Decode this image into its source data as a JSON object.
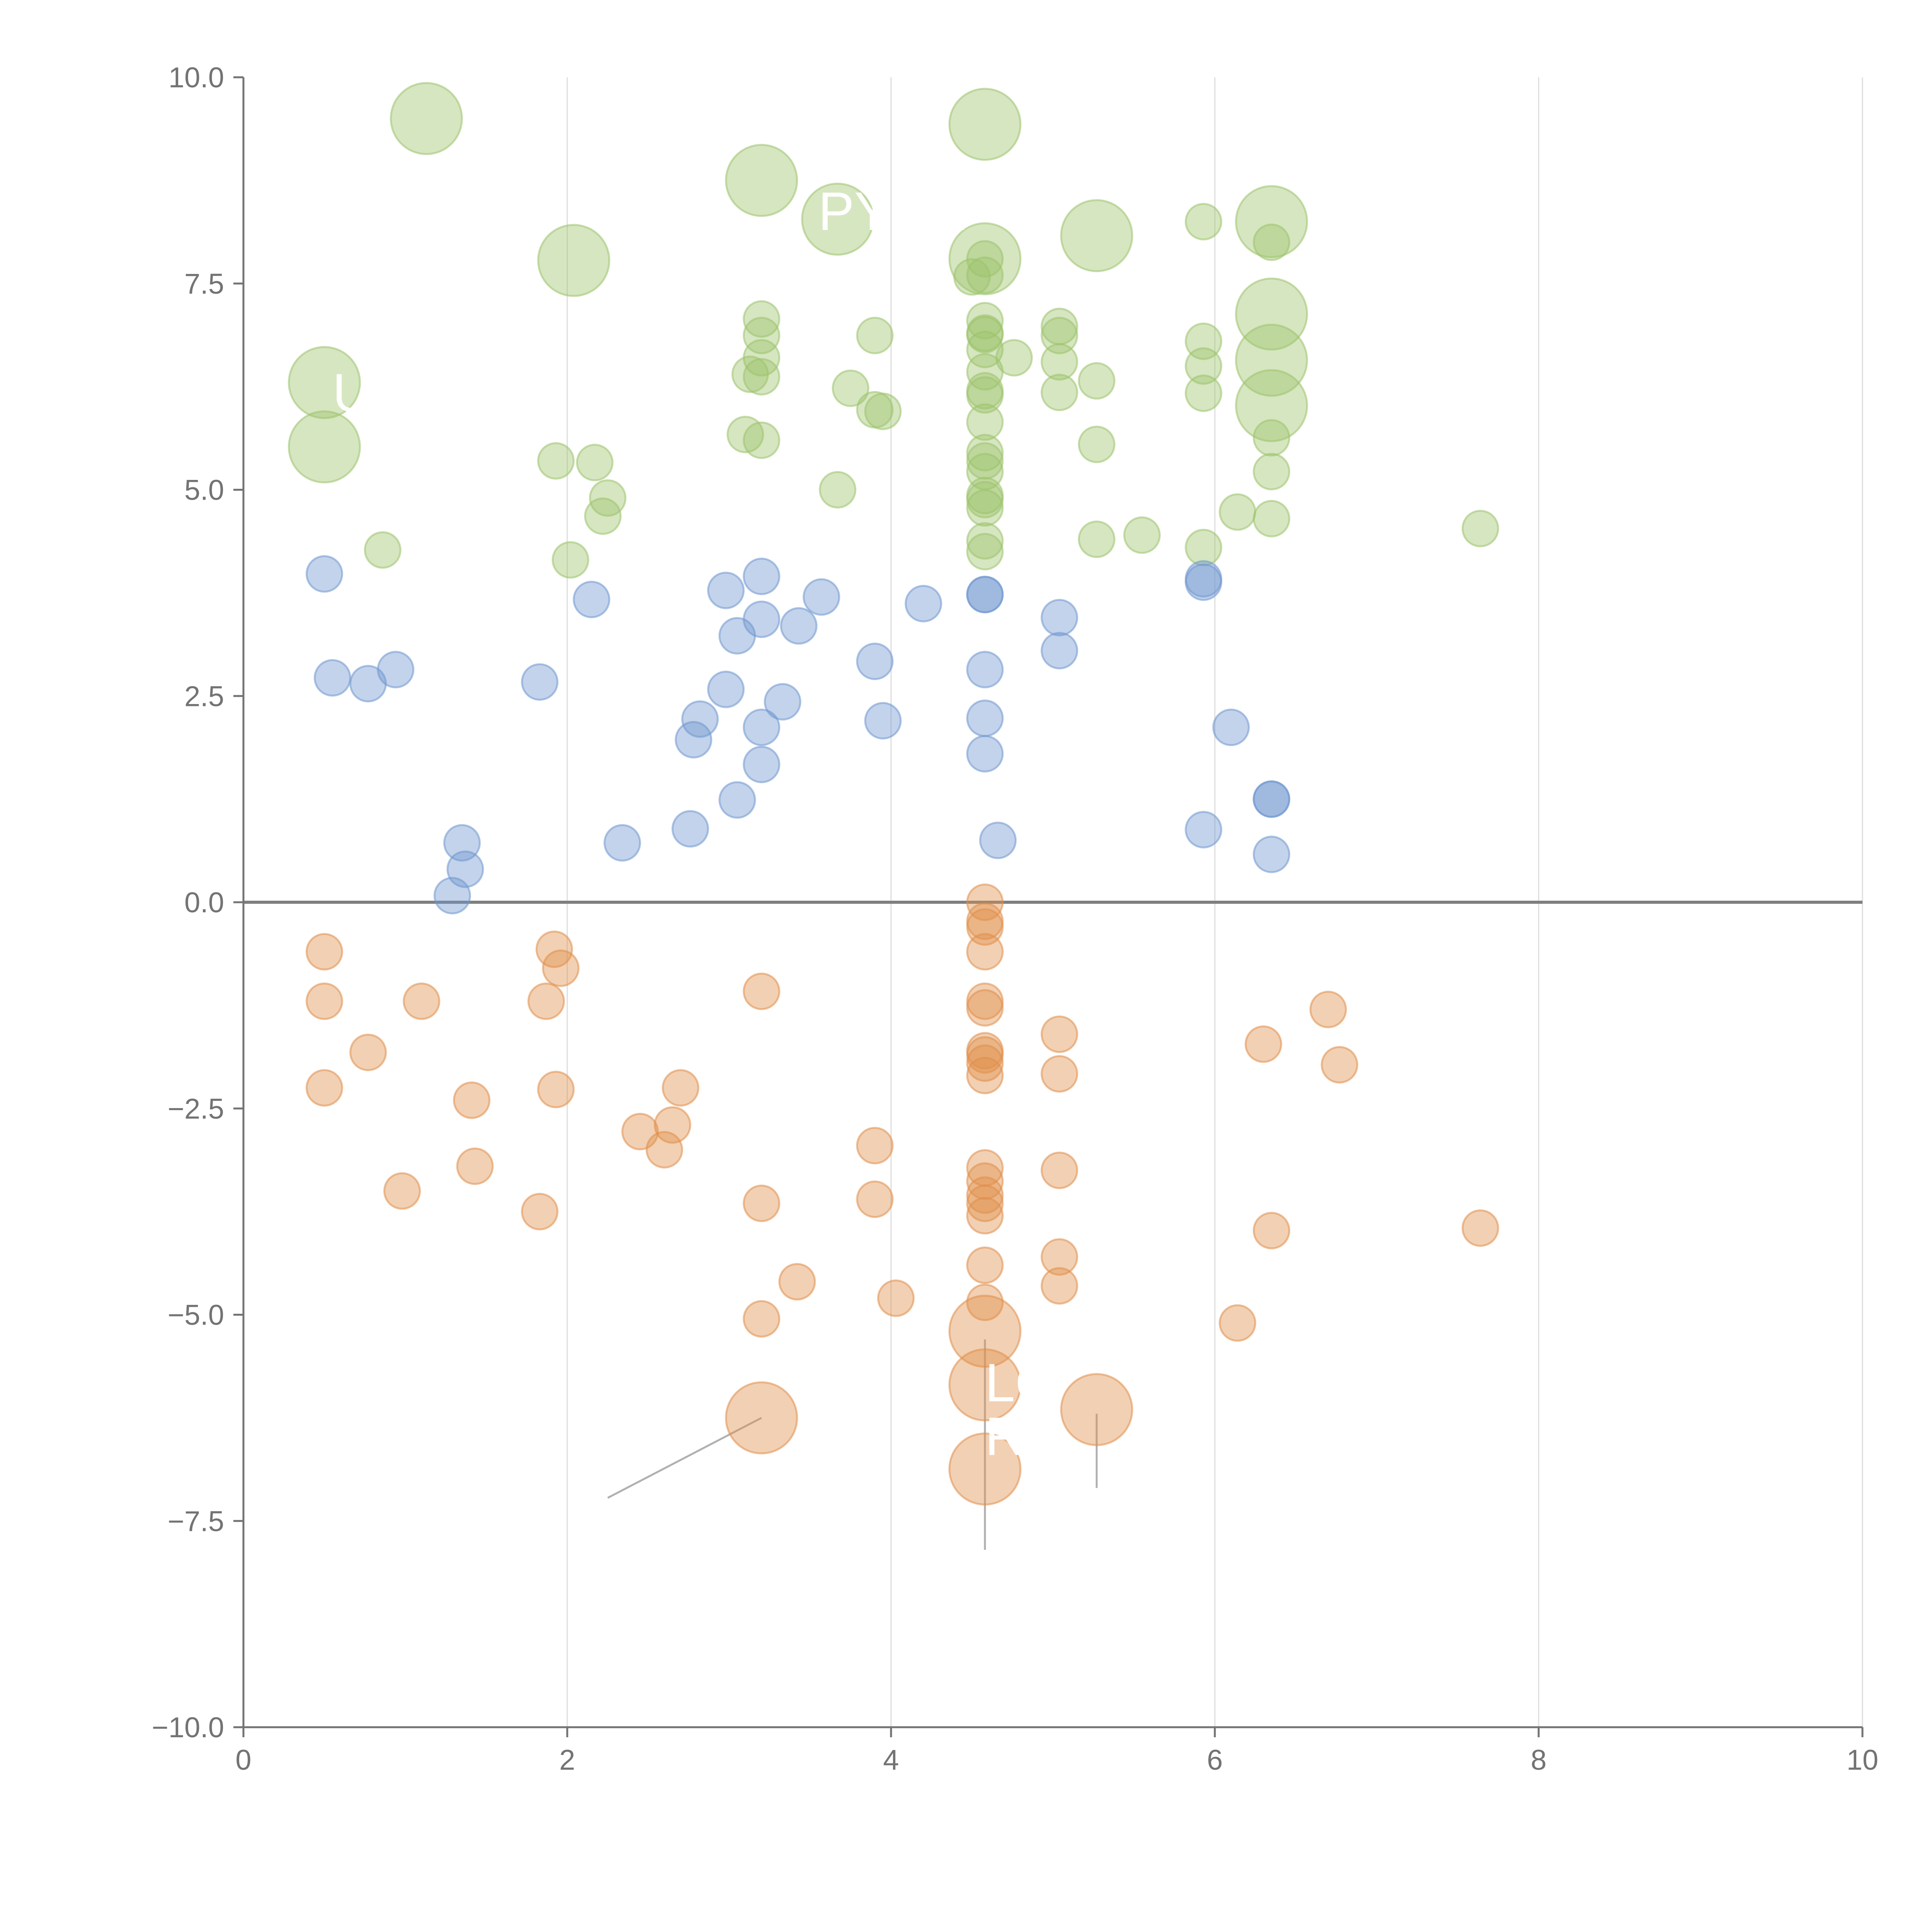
{
  "chart_data": {
    "type": "scatter",
    "title": "",
    "xlabel": "",
    "ylabel": "",
    "xlim": [
      0,
      10
    ],
    "ylim": [
      -10,
      10
    ],
    "x_ticks": [
      0,
      2,
      4,
      6,
      8,
      10
    ],
    "x_tick_labels": [
      "0",
      "2",
      "4",
      "6",
      "8",
      "10"
    ],
    "y_ticks": [
      10,
      7.5,
      5,
      2.5,
      0,
      -2.5,
      -5,
      -7.5,
      -10
    ],
    "y_tick_labels": [
      "10.0",
      "7.5",
      "5.0",
      "2.5",
      "0.0",
      "−2.5",
      "−5.0",
      "−7.5",
      "−10.0"
    ],
    "grid": "vertical",
    "zero_line": true,
    "colors": {
      "green": "#9dc36b",
      "blue": "#6f97cf",
      "orange": "#e08e4b",
      "axis": "#737373",
      "grid": "#dddddd",
      "zero_line": "#7f7f7f",
      "label": "#ffffff",
      "leader": "#b0b0b0"
    },
    "series": [
      {
        "color_key": "green",
        "small_points": [
          [
            0.86,
            4.27
          ],
          [
            1.93,
            5.35
          ],
          [
            2.02,
            4.15
          ],
          [
            2.17,
            5.33
          ],
          [
            2.22,
            4.68
          ],
          [
            2.25,
            4.9
          ],
          [
            3.1,
            5.67
          ],
          [
            3.13,
            6.4
          ],
          [
            3.2,
            7.07
          ],
          [
            3.2,
            6.87
          ],
          [
            3.2,
            6.6
          ],
          [
            3.2,
            6.37
          ],
          [
            3.2,
            5.6
          ],
          [
            3.67,
            5.0
          ],
          [
            3.75,
            6.23
          ],
          [
            3.9,
            6.87
          ],
          [
            3.9,
            5.97
          ],
          [
            3.95,
            5.95
          ],
          [
            4.5,
            7.58
          ],
          [
            4.58,
            7.8
          ],
          [
            4.58,
            7.6
          ],
          [
            4.58,
            7.05
          ],
          [
            4.58,
            6.9
          ],
          [
            4.58,
            6.88
          ],
          [
            4.58,
            6.7
          ],
          [
            4.58,
            6.43
          ],
          [
            4.58,
            6.2
          ],
          [
            4.58,
            6.15
          ],
          [
            4.58,
            5.82
          ],
          [
            4.58,
            5.45
          ],
          [
            4.58,
            5.35
          ],
          [
            4.58,
            5.22
          ],
          [
            4.58,
            4.93
          ],
          [
            4.58,
            4.88
          ],
          [
            4.58,
            4.78
          ],
          [
            4.58,
            4.38
          ],
          [
            4.58,
            4.25
          ],
          [
            4.76,
            6.6
          ],
          [
            5.04,
            6.98
          ],
          [
            5.04,
            6.87
          ],
          [
            5.04,
            6.55
          ],
          [
            5.04,
            6.18
          ],
          [
            5.27,
            6.32
          ],
          [
            5.27,
            5.55
          ],
          [
            5.27,
            4.4
          ],
          [
            5.55,
            4.45
          ],
          [
            5.93,
            8.25
          ],
          [
            5.93,
            6.8
          ],
          [
            5.93,
            6.5
          ],
          [
            5.93,
            6.17
          ],
          [
            5.93,
            4.3
          ],
          [
            6.14,
            4.73
          ],
          [
            6.35,
            8.0
          ],
          [
            6.35,
            5.63
          ],
          [
            6.35,
            5.22
          ],
          [
            6.35,
            4.65
          ],
          [
            7.64,
            4.53
          ]
        ],
        "large_points": [
          [
            0.5,
            6.3
          ],
          [
            0.5,
            5.52
          ],
          [
            1.13,
            9.5
          ],
          [
            2.04,
            7.78
          ],
          [
            3.2,
            8.75
          ],
          [
            3.67,
            8.28
          ],
          [
            4.58,
            9.43
          ],
          [
            4.58,
            7.8
          ],
          [
            5.27,
            8.08
          ],
          [
            6.35,
            8.25
          ],
          [
            6.35,
            7.13
          ],
          [
            6.35,
            6.57
          ],
          [
            6.35,
            6.02
          ]
        ]
      },
      {
        "color_key": "blue",
        "small_points": [
          [
            0.5,
            3.98
          ],
          [
            0.55,
            2.72
          ],
          [
            0.77,
            2.65
          ],
          [
            0.94,
            2.82
          ],
          [
            1.29,
            0.08
          ],
          [
            1.35,
            0.72
          ],
          [
            1.37,
            0.4
          ],
          [
            1.83,
            2.67
          ],
          [
            2.15,
            3.67
          ],
          [
            2.34,
            0.72
          ],
          [
            2.76,
            0.89
          ],
          [
            2.78,
            1.97
          ],
          [
            2.82,
            2.22
          ],
          [
            2.98,
            2.58
          ],
          [
            2.98,
            3.78
          ],
          [
            3.05,
            1.24
          ],
          [
            3.05,
            3.23
          ],
          [
            3.2,
            3.95
          ],
          [
            3.2,
            3.43
          ],
          [
            3.2,
            2.12
          ],
          [
            3.2,
            1.67
          ],
          [
            3.33,
            2.43
          ],
          [
            3.43,
            3.35
          ],
          [
            3.57,
            3.7
          ],
          [
            3.9,
            2.92
          ],
          [
            3.95,
            2.2
          ],
          [
            4.2,
            3.62
          ],
          [
            4.58,
            3.73
          ],
          [
            4.58,
            3.73
          ],
          [
            4.58,
            2.82
          ],
          [
            4.58,
            2.23
          ],
          [
            4.58,
            1.8
          ],
          [
            4.66,
            0.75
          ],
          [
            5.04,
            3.45
          ],
          [
            5.04,
            3.05
          ],
          [
            5.93,
            3.92
          ],
          [
            5.93,
            3.88
          ],
          [
            5.93,
            0.88
          ],
          [
            6.1,
            2.12
          ],
          [
            6.35,
            1.25
          ],
          [
            6.35,
            1.25
          ],
          [
            6.35,
            0.58
          ]
        ],
        "large_points": []
      },
      {
        "color_key": "orange",
        "small_points": [
          [
            0.5,
            -0.6
          ],
          [
            0.5,
            -1.2
          ],
          [
            0.5,
            -2.25
          ],
          [
            0.77,
            -1.82
          ],
          [
            0.98,
            -3.5
          ],
          [
            1.1,
            -1.2
          ],
          [
            1.41,
            -2.4
          ],
          [
            1.43,
            -3.2
          ],
          [
            1.83,
            -3.75
          ],
          [
            1.87,
            -1.2
          ],
          [
            1.92,
            -0.57
          ],
          [
            1.93,
            -2.27
          ],
          [
            1.96,
            -0.8
          ],
          [
            2.45,
            -2.78
          ],
          [
            2.6,
            -3.0
          ],
          [
            2.65,
            -2.7
          ],
          [
            2.7,
            -2.25
          ],
          [
            3.2,
            -1.08
          ],
          [
            3.2,
            -3.65
          ],
          [
            3.2,
            -5.05
          ],
          [
            3.42,
            -4.6
          ],
          [
            3.9,
            -2.95
          ],
          [
            3.9,
            -3.6
          ],
          [
            4.03,
            -4.8
          ],
          [
            4.58,
            0.0
          ],
          [
            4.58,
            -0.23
          ],
          [
            4.58,
            -0.3
          ],
          [
            4.58,
            -0.6
          ],
          [
            4.58,
            -1.2
          ],
          [
            4.58,
            -1.28
          ],
          [
            4.58,
            -1.8
          ],
          [
            4.58,
            -1.85
          ],
          [
            4.58,
            -1.95
          ],
          [
            4.58,
            -2.1
          ],
          [
            4.58,
            -3.22
          ],
          [
            4.58,
            -3.38
          ],
          [
            4.58,
            -3.55
          ],
          [
            4.58,
            -3.65
          ],
          [
            4.58,
            -3.8
          ],
          [
            4.58,
            -4.4
          ],
          [
            4.58,
            -4.85
          ],
          [
            5.04,
            -1.6
          ],
          [
            5.04,
            -2.08
          ],
          [
            5.04,
            -3.25
          ],
          [
            5.04,
            -4.3
          ],
          [
            5.04,
            -4.65
          ],
          [
            6.14,
            -5.1
          ],
          [
            6.3,
            -1.72
          ],
          [
            6.35,
            -3.98
          ],
          [
            6.7,
            -1.3
          ],
          [
            6.77,
            -1.97
          ],
          [
            7.64,
            -3.95
          ]
        ],
        "large_points": [
          [
            3.2,
            -6.25
          ],
          [
            4.58,
            -5.2
          ],
          [
            4.58,
            -5.85
          ],
          [
            4.58,
            -6.87
          ],
          [
            5.27,
            -6.15
          ]
        ]
      }
    ],
    "annotations": [
      {
        "text": "LC",
        "x": 4.58,
        "y": -6.05
      },
      {
        "text": "R",
        "x": 4.58,
        "y": -6.7
      },
      {
        "text": "PYDX",
        "x": 3.55,
        "y": 8.15
      },
      {
        "text": "U",
        "x": 0.55,
        "y": 5.95
      }
    ]
  }
}
